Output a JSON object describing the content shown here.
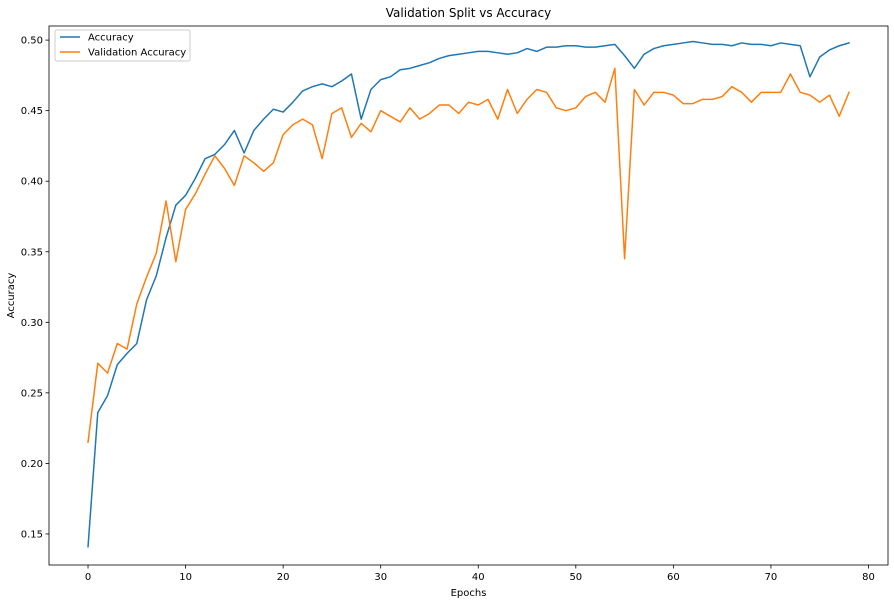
{
  "chart_data": {
    "type": "line",
    "title": "Validation Split vs Accuracy",
    "xlabel": "Epochs",
    "ylabel": "Accuracy",
    "xlim": [
      -4,
      82
    ],
    "ylim": [
      0.128,
      0.51
    ],
    "xticks": [
      0,
      10,
      20,
      30,
      40,
      50,
      60,
      70,
      80
    ],
    "yticks": [
      0.15,
      0.2,
      0.25,
      0.3,
      0.35,
      0.4,
      0.45,
      0.5
    ],
    "xtick_labels": [
      "0",
      "10",
      "20",
      "30",
      "40",
      "50",
      "60",
      "70",
      "80"
    ],
    "ytick_labels": [
      "0.15",
      "0.20",
      "0.25",
      "0.30",
      "0.35",
      "0.40",
      "0.45",
      "0.50"
    ],
    "grid": false,
    "legend_position": "top-left",
    "series": [
      {
        "name": "Accuracy",
        "color": "#1f77b4",
        "values": [
          0.141,
          0.236,
          0.248,
          0.27,
          0.278,
          0.285,
          0.316,
          0.333,
          0.36,
          0.383,
          0.39,
          0.402,
          0.416,
          0.419,
          0.426,
          0.436,
          0.42,
          0.436,
          0.444,
          0.451,
          0.449,
          0.456,
          0.464,
          0.467,
          0.469,
          0.467,
          0.471,
          0.476,
          0.444,
          0.465,
          0.472,
          0.474,
          0.479,
          0.48,
          0.482,
          0.484,
          0.487,
          0.489,
          0.49,
          0.491,
          0.492,
          0.492,
          0.491,
          0.49,
          0.491,
          0.494,
          0.492,
          0.495,
          0.495,
          0.496,
          0.496,
          0.495,
          0.495,
          0.496,
          0.497,
          0.489,
          0.48,
          0.49,
          0.494,
          0.496,
          0.497,
          0.498,
          0.499,
          0.498,
          0.497,
          0.497,
          0.496,
          0.498,
          0.497,
          0.497,
          0.496,
          0.498,
          0.497,
          0.496,
          0.474,
          0.488,
          0.493,
          0.496,
          0.498
        ]
      },
      {
        "name": "Validation Accuracy",
        "color": "#ff7f0e",
        "values": [
          0.215,
          0.271,
          0.264,
          0.285,
          0.281,
          0.313,
          0.332,
          0.349,
          0.386,
          0.343,
          0.38,
          0.391,
          0.405,
          0.418,
          0.409,
          0.397,
          0.418,
          0.413,
          0.407,
          0.413,
          0.433,
          0.44,
          0.444,
          0.44,
          0.416,
          0.448,
          0.452,
          0.431,
          0.441,
          0.435,
          0.45,
          0.446,
          0.442,
          0.452,
          0.444,
          0.448,
          0.454,
          0.454,
          0.448,
          0.456,
          0.454,
          0.458,
          0.444,
          0.465,
          0.448,
          0.458,
          0.465,
          0.463,
          0.452,
          0.45,
          0.452,
          0.46,
          0.463,
          0.456,
          0.48,
          0.345,
          0.465,
          0.454,
          0.463,
          0.463,
          0.461,
          0.455,
          0.455,
          0.458,
          0.458,
          0.46,
          0.467,
          0.463,
          0.456,
          0.463,
          0.463,
          0.463,
          0.476,
          0.463,
          0.461,
          0.456,
          0.461,
          0.446,
          0.463
        ]
      }
    ]
  }
}
